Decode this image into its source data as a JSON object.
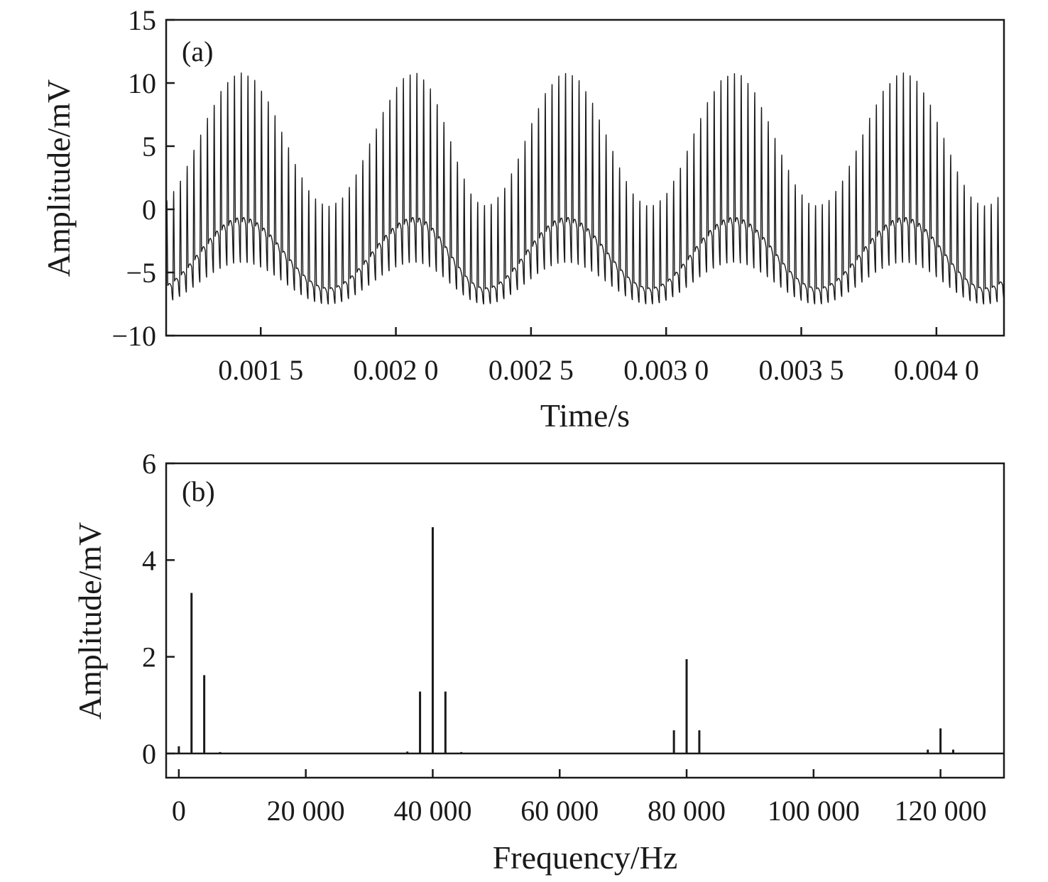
{
  "chart_data": [
    {
      "type": "line",
      "panel_label": "(a)",
      "xlabel": "Time/s",
      "ylabel": "Amplitude/mV",
      "xlim": [
        0.00115,
        0.00425
      ],
      "ylim": [
        -10,
        15
      ],
      "xticks": [
        0.0015,
        0.002,
        0.0025,
        0.003,
        0.0035,
        0.004
      ],
      "xtick_labels": [
        "0.001 5",
        "0.002 0",
        "0.002 5",
        "0.003 0",
        "0.003 5",
        "0.004 0"
      ],
      "yticks": [
        -10,
        -5,
        0,
        5,
        10,
        15
      ],
      "ytick_labels": [
        "−10",
        "−5",
        "0",
        "5",
        "10",
        "15"
      ],
      "signal": {
        "description_of_shape": "carrier at 40 000 Hz, modulated by 2 000 Hz envelope",
        "carrier_frequency_hz": 40000,
        "envelope_frequency_hz": 2000,
        "envelope_peak_times_s": [
          0.00143,
          0.00207,
          0.00263,
          0.00325,
          0.00388
        ],
        "envelope_trough_times_s": [
          0.00175,
          0.00233,
          0.00294,
          0.00356,
          0.00418
        ],
        "max_amplitude_mV": 10.8,
        "min_amplitude_mV": -7.5,
        "upper_envelope_at_trough_mV": 0.3,
        "lower_envelope_at_peak_mV": -4.2,
        "baseline_at_peak_mV": -1.0,
        "baseline_at_trough_mV": -6.3
      },
      "grid": false
    },
    {
      "type": "bar",
      "panel_label": "(b)",
      "xlabel": "Frequency/Hz",
      "ylabel": "Amplitude/mV",
      "xlim": [
        -2000,
        130000
      ],
      "ylim": [
        -0.5,
        6
      ],
      "xticks": [
        0,
        20000,
        40000,
        60000,
        80000,
        100000,
        120000
      ],
      "xtick_labels": [
        "0",
        "20 000",
        "40 000",
        "60 000",
        "80 000",
        "100 000",
        "120 000"
      ],
      "yticks": [
        0,
        2,
        4,
        6
      ],
      "ytick_labels": [
        "0",
        "2",
        "4",
        "6"
      ],
      "x": [
        0,
        2000,
        4000,
        6500,
        36000,
        38000,
        40000,
        42000,
        44500,
        78000,
        80000,
        82000,
        118000,
        120000,
        122000
      ],
      "values": [
        0.15,
        3.32,
        1.62,
        0.03,
        0.04,
        1.28,
        4.68,
        1.28,
        0.03,
        0.48,
        1.95,
        0.48,
        0.08,
        0.52,
        0.08
      ],
      "grid": false
    }
  ]
}
